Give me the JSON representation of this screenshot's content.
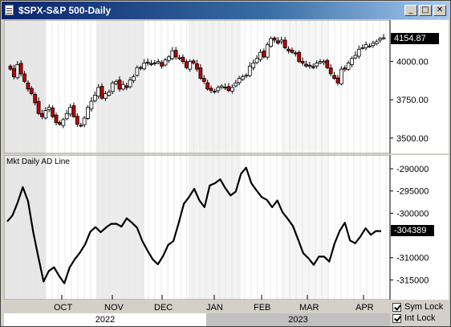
{
  "window": {
    "title": "$SPX-S&P 500-Daily",
    "buttons": {
      "minimize": "_",
      "maximize": "□",
      "close": "✕"
    }
  },
  "price_panel": {
    "last_value": "4154.87",
    "y_ticks": [
      "4000.00",
      "3750.00",
      "3500.00"
    ]
  },
  "ad_panel": {
    "label": "Mkt Daily AD Line",
    "last_value": "-304389",
    "y_ticks": [
      "-290000",
      "-295000",
      "-300000",
      "-310000",
      "-315000"
    ]
  },
  "x_axis": {
    "months": [
      "OCT",
      "NOV",
      "DEC",
      "JAN",
      "FEB",
      "MAR",
      "APR"
    ],
    "years": [
      "2022",
      "2023"
    ]
  },
  "checkboxes": {
    "sym_lock": "Sym Lock",
    "int_lock": "Int Lock"
  },
  "chart_data": [
    {
      "type": "candlestick",
      "y_ticks": [
        4000,
        3750,
        3500
      ],
      "ylim": [
        3420,
        4250
      ],
      "last": 4154.87,
      "close_estimates": [
        3950,
        3900,
        3980,
        3920,
        3870,
        3820,
        3790,
        3730,
        3660,
        3640,
        3680,
        3700,
        3640,
        3600,
        3590,
        3620,
        3660,
        3700,
        3640,
        3590,
        3580,
        3630,
        3700,
        3740,
        3780,
        3830,
        3760,
        3790,
        3800,
        3860,
        3870,
        3820,
        3850,
        3830,
        3880,
        3900,
        3960,
        3960,
        3990,
        3990,
        3980,
        3990,
        4000,
        3970,
        4010,
        4030,
        4070,
        4030,
        4020,
        4000,
        3960,
        4000,
        3990,
        3950,
        3890,
        3870,
        3820,
        3810,
        3800,
        3830,
        3840,
        3830,
        3810,
        3830,
        3860,
        3890,
        3900,
        3910,
        3970,
        3990,
        4020,
        4060,
        4030,
        4110,
        4150,
        4140,
        4120,
        4140,
        4090,
        4070,
        4060,
        4050,
        4000,
        3990,
        3970,
        3970,
        3960,
        3990,
        4000,
        4000,
        3960,
        3920,
        3890,
        3860,
        3950,
        3950,
        3990,
        4020,
        4040,
        4080,
        4090,
        4110,
        4100,
        4120,
        4130,
        4150,
        4155
      ],
      "ylabel": ""
    },
    {
      "type": "line",
      "name": "Mkt Daily AD Line",
      "y_ticks": [
        -290000,
        -295000,
        -300000,
        -310000,
        -315000
      ],
      "ylim": [
        -318000,
        -288000
      ],
      "last": -304389,
      "values": [
        -301500,
        -300500,
        -298000,
        -294000,
        -297500,
        -304000,
        -310000,
        -315000,
        -313000,
        -312500,
        -314000,
        -316000,
        -312000,
        -310500,
        -308500,
        -307000,
        -304500,
        -303000,
        -304500,
        -303000,
        -302500,
        -302000,
        -303000,
        -301500,
        -302000,
        -303500,
        -306000,
        -308500,
        -310000,
        -311500,
        -310000,
        -307000,
        -306500,
        -302000,
        -298000,
        -296000,
        -294500,
        -297500,
        -298500,
        -294000,
        -293000,
        -292500,
        -294000,
        -296000,
        -295500,
        -291000,
        -290000,
        -293000,
        -295000,
        -296000,
        -297000,
        -299000,
        -297000,
        -300000,
        -301000,
        -303000,
        -305500,
        -309000,
        -310500,
        -311500,
        -310000,
        -309500,
        -311000,
        -306500,
        -304000,
        -302500,
        -306000,
        -307000,
        -305000,
        -303500,
        -304500,
        -304000,
        -304389
      ]
    }
  ]
}
